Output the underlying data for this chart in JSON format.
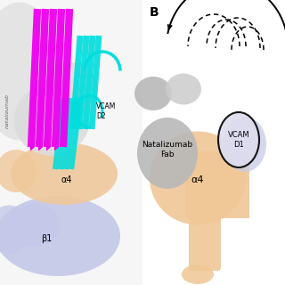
{
  "bg_color": "#ffffff",
  "panel_b_label": "B",
  "natalizumab_fab_label": "Natalizumab\nFab",
  "vcam_d1_label": "VCAM\nD1",
  "alpha4_label": "α4",
  "vcam_d2_label": "VCAM\nD2",
  "gray_dark": "#a0a0a0",
  "gray_mid": "#b8b8b8",
  "gray_light": "#cccccc",
  "peach_color": "#f0c898",
  "lavender_color": "#c8cce8",
  "magenta_color": "#ee00ee",
  "cyan_color": "#00dddd",
  "panel_a_bg": "#f0f0f0"
}
